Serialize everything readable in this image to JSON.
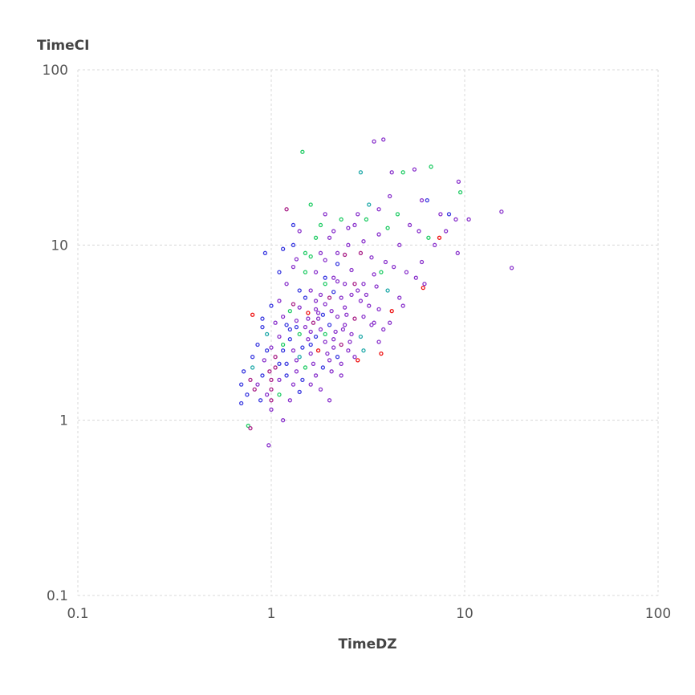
{
  "chart_data": {
    "type": "scatter",
    "xlabel": "TimeDZ",
    "ylabel": "TimeCI",
    "xscale": "log",
    "yscale": "log",
    "xlim": [
      0.1,
      100
    ],
    "ylim": [
      0.1,
      100
    ],
    "xticks": [
      "0.1",
      "1",
      "10",
      "100"
    ],
    "yticks": [
      "0.1",
      "1",
      "10",
      "100"
    ],
    "grid": true,
    "marker": "hollow-circle",
    "colors": [
      "#8a33cc",
      "#3a3ae0",
      "#22cc66",
      "#aa2288",
      "#ee1111",
      "#22aaaa"
    ],
    "points": [
      [
        1.45,
        34,
        2
      ],
      [
        3.4,
        39,
        0
      ],
      [
        3.8,
        40,
        0
      ],
      [
        2.9,
        26,
        5
      ],
      [
        6.7,
        28,
        2
      ],
      [
        9.3,
        23,
        0
      ],
      [
        9.5,
        20,
        2
      ],
      [
        15.5,
        15.5,
        0
      ],
      [
        17.5,
        7.4,
        0
      ],
      [
        10.5,
        14,
        0
      ],
      [
        0.93,
        9,
        1
      ],
      [
        0.97,
        0.72,
        0
      ],
      [
        0.76,
        0.93,
        2
      ],
      [
        0.78,
        0.9,
        3
      ],
      [
        1.15,
        1.0,
        0
      ],
      [
        3.7,
        2.4,
        4
      ],
      [
        7.4,
        11,
        4
      ],
      [
        6.1,
        5.7,
        4
      ],
      [
        0.8,
        4,
        4
      ],
      [
        2.8,
        2.2,
        4
      ],
      [
        4.2,
        26,
        0
      ],
      [
        4.8,
        26,
        2
      ],
      [
        5.5,
        27,
        0
      ],
      [
        3.2,
        17,
        5
      ],
      [
        3.6,
        16,
        0
      ],
      [
        4.5,
        15,
        2
      ],
      [
        4.1,
        19,
        0
      ],
      [
        6.0,
        18,
        0
      ],
      [
        6.4,
        18,
        1
      ],
      [
        7.5,
        15,
        0
      ],
      [
        8.3,
        15,
        1
      ],
      [
        9.0,
        14,
        0
      ],
      [
        8.0,
        12,
        0
      ],
      [
        5.2,
        13,
        0
      ],
      [
        5.8,
        12,
        0
      ],
      [
        6.5,
        11,
        2
      ],
      [
        4.6,
        10,
        0
      ],
      [
        7.0,
        10,
        0
      ],
      [
        9.2,
        9,
        0
      ],
      [
        6.0,
        8,
        0
      ],
      [
        1.2,
        16,
        3
      ],
      [
        1.6,
        17,
        2
      ],
      [
        1.9,
        15,
        0
      ],
      [
        2.3,
        14,
        2
      ],
      [
        2.7,
        13,
        0
      ],
      [
        1.4,
        12,
        0
      ],
      [
        1.7,
        11,
        2
      ],
      [
        2.0,
        11,
        0
      ],
      [
        2.5,
        10,
        0
      ],
      [
        1.3,
        10,
        1
      ],
      [
        1.5,
        9,
        2
      ],
      [
        1.8,
        9,
        0
      ],
      [
        2.2,
        9,
        0
      ],
      [
        2.9,
        9,
        3
      ],
      [
        3.3,
        8.5,
        0
      ],
      [
        3.9,
        8,
        0
      ],
      [
        4.3,
        7.5,
        0
      ],
      [
        5.0,
        7,
        0
      ],
      [
        5.6,
        6.5,
        0
      ],
      [
        6.2,
        6,
        0
      ],
      [
        1.1,
        7,
        1
      ],
      [
        1.3,
        7.5,
        0
      ],
      [
        1.5,
        7,
        2
      ],
      [
        1.7,
        7,
        0
      ],
      [
        1.9,
        6.5,
        1
      ],
      [
        2.1,
        6.5,
        0
      ],
      [
        2.4,
        6,
        0
      ],
      [
        2.7,
        6,
        3
      ],
      [
        3.0,
        6,
        0
      ],
      [
        3.5,
        5.8,
        0
      ],
      [
        4.0,
        5.5,
        5
      ],
      [
        4.6,
        5,
        0
      ],
      [
        1.2,
        6,
        0
      ],
      [
        1.4,
        5.5,
        1
      ],
      [
        1.6,
        5.5,
        0
      ],
      [
        1.8,
        5.2,
        0
      ],
      [
        2.0,
        5,
        3
      ],
      [
        2.3,
        5,
        0
      ],
      [
        2.6,
        5.2,
        0
      ],
      [
        2.9,
        4.8,
        0
      ],
      [
        3.2,
        4.5,
        0
      ],
      [
        3.6,
        4.3,
        0
      ],
      [
        4.2,
        4.2,
        4
      ],
      [
        4.8,
        4.5,
        0
      ],
      [
        1.0,
        4.5,
        1
      ],
      [
        1.1,
        4.8,
        0
      ],
      [
        1.25,
        4.2,
        2
      ],
      [
        1.4,
        4.4,
        0
      ],
      [
        1.55,
        4.1,
        4
      ],
      [
        1.7,
        4.3,
        0
      ],
      [
        1.85,
        4,
        1
      ],
      [
        2.05,
        4.2,
        0
      ],
      [
        2.2,
        3.9,
        0
      ],
      [
        2.45,
        4,
        0
      ],
      [
        2.7,
        3.8,
        3
      ],
      [
        3.0,
        3.9,
        0
      ],
      [
        3.4,
        3.6,
        0
      ],
      [
        3.8,
        3.3,
        0
      ],
      [
        0.9,
        3.8,
        1
      ],
      [
        1.05,
        3.6,
        0
      ],
      [
        1.2,
        3.5,
        1
      ],
      [
        1.35,
        3.7,
        0
      ],
      [
        1.5,
        3.4,
        0
      ],
      [
        1.65,
        3.6,
        3
      ],
      [
        1.8,
        3.3,
        0
      ],
      [
        2.0,
        3.5,
        1
      ],
      [
        2.15,
        3.2,
        0
      ],
      [
        2.35,
        3.3,
        0
      ],
      [
        2.6,
        3.1,
        0
      ],
      [
        2.9,
        3.0,
        5
      ],
      [
        0.95,
        3.1,
        5
      ],
      [
        1.1,
        3.0,
        0
      ],
      [
        1.25,
        2.9,
        1
      ],
      [
        1.4,
        3.1,
        2
      ],
      [
        1.55,
        2.9,
        0
      ],
      [
        1.7,
        3.0,
        1
      ],
      [
        1.9,
        2.8,
        0
      ],
      [
        2.1,
        2.9,
        0
      ],
      [
        2.3,
        2.7,
        3
      ],
      [
        2.55,
        2.8,
        0
      ],
      [
        0.85,
        2.7,
        1
      ],
      [
        1.0,
        2.6,
        0
      ],
      [
        1.15,
        2.7,
        2
      ],
      [
        1.3,
        2.5,
        0
      ],
      [
        1.45,
        2.6,
        1
      ],
      [
        1.6,
        2.4,
        0
      ],
      [
        1.75,
        2.5,
        4
      ],
      [
        1.95,
        2.4,
        0
      ],
      [
        2.2,
        2.3,
        1
      ],
      [
        2.5,
        2.5,
        0
      ],
      [
        0.8,
        2.3,
        1
      ],
      [
        0.92,
        2.2,
        0
      ],
      [
        1.05,
        2.3,
        3
      ],
      [
        1.2,
        2.1,
        1
      ],
      [
        1.35,
        2.2,
        0
      ],
      [
        1.5,
        2.0,
        2
      ],
      [
        1.65,
        2.1,
        0
      ],
      [
        1.85,
        2.0,
        1
      ],
      [
        2.05,
        1.9,
        0
      ],
      [
        2.3,
        1.8,
        0
      ],
      [
        0.72,
        1.9,
        1
      ],
      [
        0.8,
        2.0,
        5
      ],
      [
        0.9,
        1.8,
        1
      ],
      [
        0.98,
        1.9,
        3
      ],
      [
        1.0,
        1.7,
        3
      ],
      [
        1.0,
        1.5,
        3
      ],
      [
        1.0,
        1.3,
        3
      ],
      [
        1.0,
        1.15,
        0
      ],
      [
        1.1,
        1.7,
        0
      ],
      [
        1.2,
        1.8,
        1
      ],
      [
        1.3,
        1.6,
        0
      ],
      [
        1.45,
        1.7,
        1
      ],
      [
        1.6,
        1.6,
        0
      ],
      [
        1.8,
        1.5,
        0
      ],
      [
        2.0,
        1.3,
        0
      ],
      [
        0.7,
        1.6,
        1
      ],
      [
        0.75,
        1.4,
        1
      ],
      [
        0.82,
        1.5,
        3
      ],
      [
        0.88,
        1.3,
        1
      ],
      [
        0.7,
        1.25,
        1
      ],
      [
        0.95,
        1.4,
        0
      ],
      [
        1.1,
        1.4,
        2
      ],
      [
        1.25,
        1.3,
        0
      ],
      [
        1.4,
        1.45,
        1
      ],
      [
        0.78,
        1.7,
        3
      ],
      [
        0.85,
        1.6,
        0
      ],
      [
        1.05,
        2.0,
        3
      ],
      [
        1.15,
        2.5,
        1
      ],
      [
        1.25,
        3.3,
        1
      ],
      [
        1.4,
        2.3,
        5
      ],
      [
        1.6,
        2.7,
        1
      ],
      [
        1.75,
        3.8,
        0
      ],
      [
        1.9,
        4.6,
        0
      ],
      [
        2.1,
        5.4,
        1
      ],
      [
        2.4,
        4.4,
        0
      ],
      [
        2.8,
        5.5,
        0
      ],
      [
        3.1,
        5.2,
        0
      ],
      [
        3.4,
        6.8,
        0
      ],
      [
        3.7,
        7,
        2
      ],
      [
        2.6,
        7.2,
        0
      ],
      [
        2.2,
        7.8,
        1
      ],
      [
        1.9,
        8.2,
        0
      ],
      [
        1.6,
        8.6,
        2
      ],
      [
        1.35,
        8.3,
        0
      ],
      [
        2.4,
        8.8,
        3
      ],
      [
        3.0,
        10.5,
        0
      ],
      [
        3.6,
        11.5,
        0
      ],
      [
        4.0,
        12.5,
        2
      ],
      [
        2.1,
        12,
        0
      ],
      [
        1.8,
        13,
        2
      ],
      [
        2.5,
        12.5,
        0
      ],
      [
        3.1,
        14,
        2
      ],
      [
        2.8,
        15,
        0
      ],
      [
        1.15,
        9.5,
        1
      ],
      [
        1.3,
        13,
        1
      ],
      [
        1.9,
        6,
        2
      ],
      [
        2.2,
        6.2,
        0
      ],
      [
        1.5,
        5,
        1
      ],
      [
        1.7,
        4.8,
        0
      ],
      [
        2.4,
        3.5,
        0
      ],
      [
        2.1,
        2.6,
        0
      ],
      [
        1.9,
        3.1,
        2
      ],
      [
        1.6,
        3.2,
        0
      ],
      [
        1.35,
        3.4,
        1
      ],
      [
        1.55,
        3.8,
        0
      ],
      [
        1.75,
        4.1,
        0
      ],
      [
        1.3,
        4.6,
        3
      ],
      [
        1.15,
        3.9,
        0
      ],
      [
        3.3,
        3.5,
        0
      ],
      [
        4.1,
        3.6,
        0
      ],
      [
        3.6,
        2.8,
        0
      ],
      [
        3.0,
        2.5,
        5
      ],
      [
        2.7,
        2.3,
        0
      ],
      [
        2.3,
        2.1,
        0
      ],
      [
        2.0,
        2.2,
        0
      ],
      [
        1.7,
        1.8,
        0
      ],
      [
        1.35,
        1.9,
        0
      ],
      [
        1.1,
        2.1,
        1
      ],
      [
        0.95,
        2.5,
        1
      ],
      [
        0.9,
        3.4,
        1
      ]
    ]
  }
}
